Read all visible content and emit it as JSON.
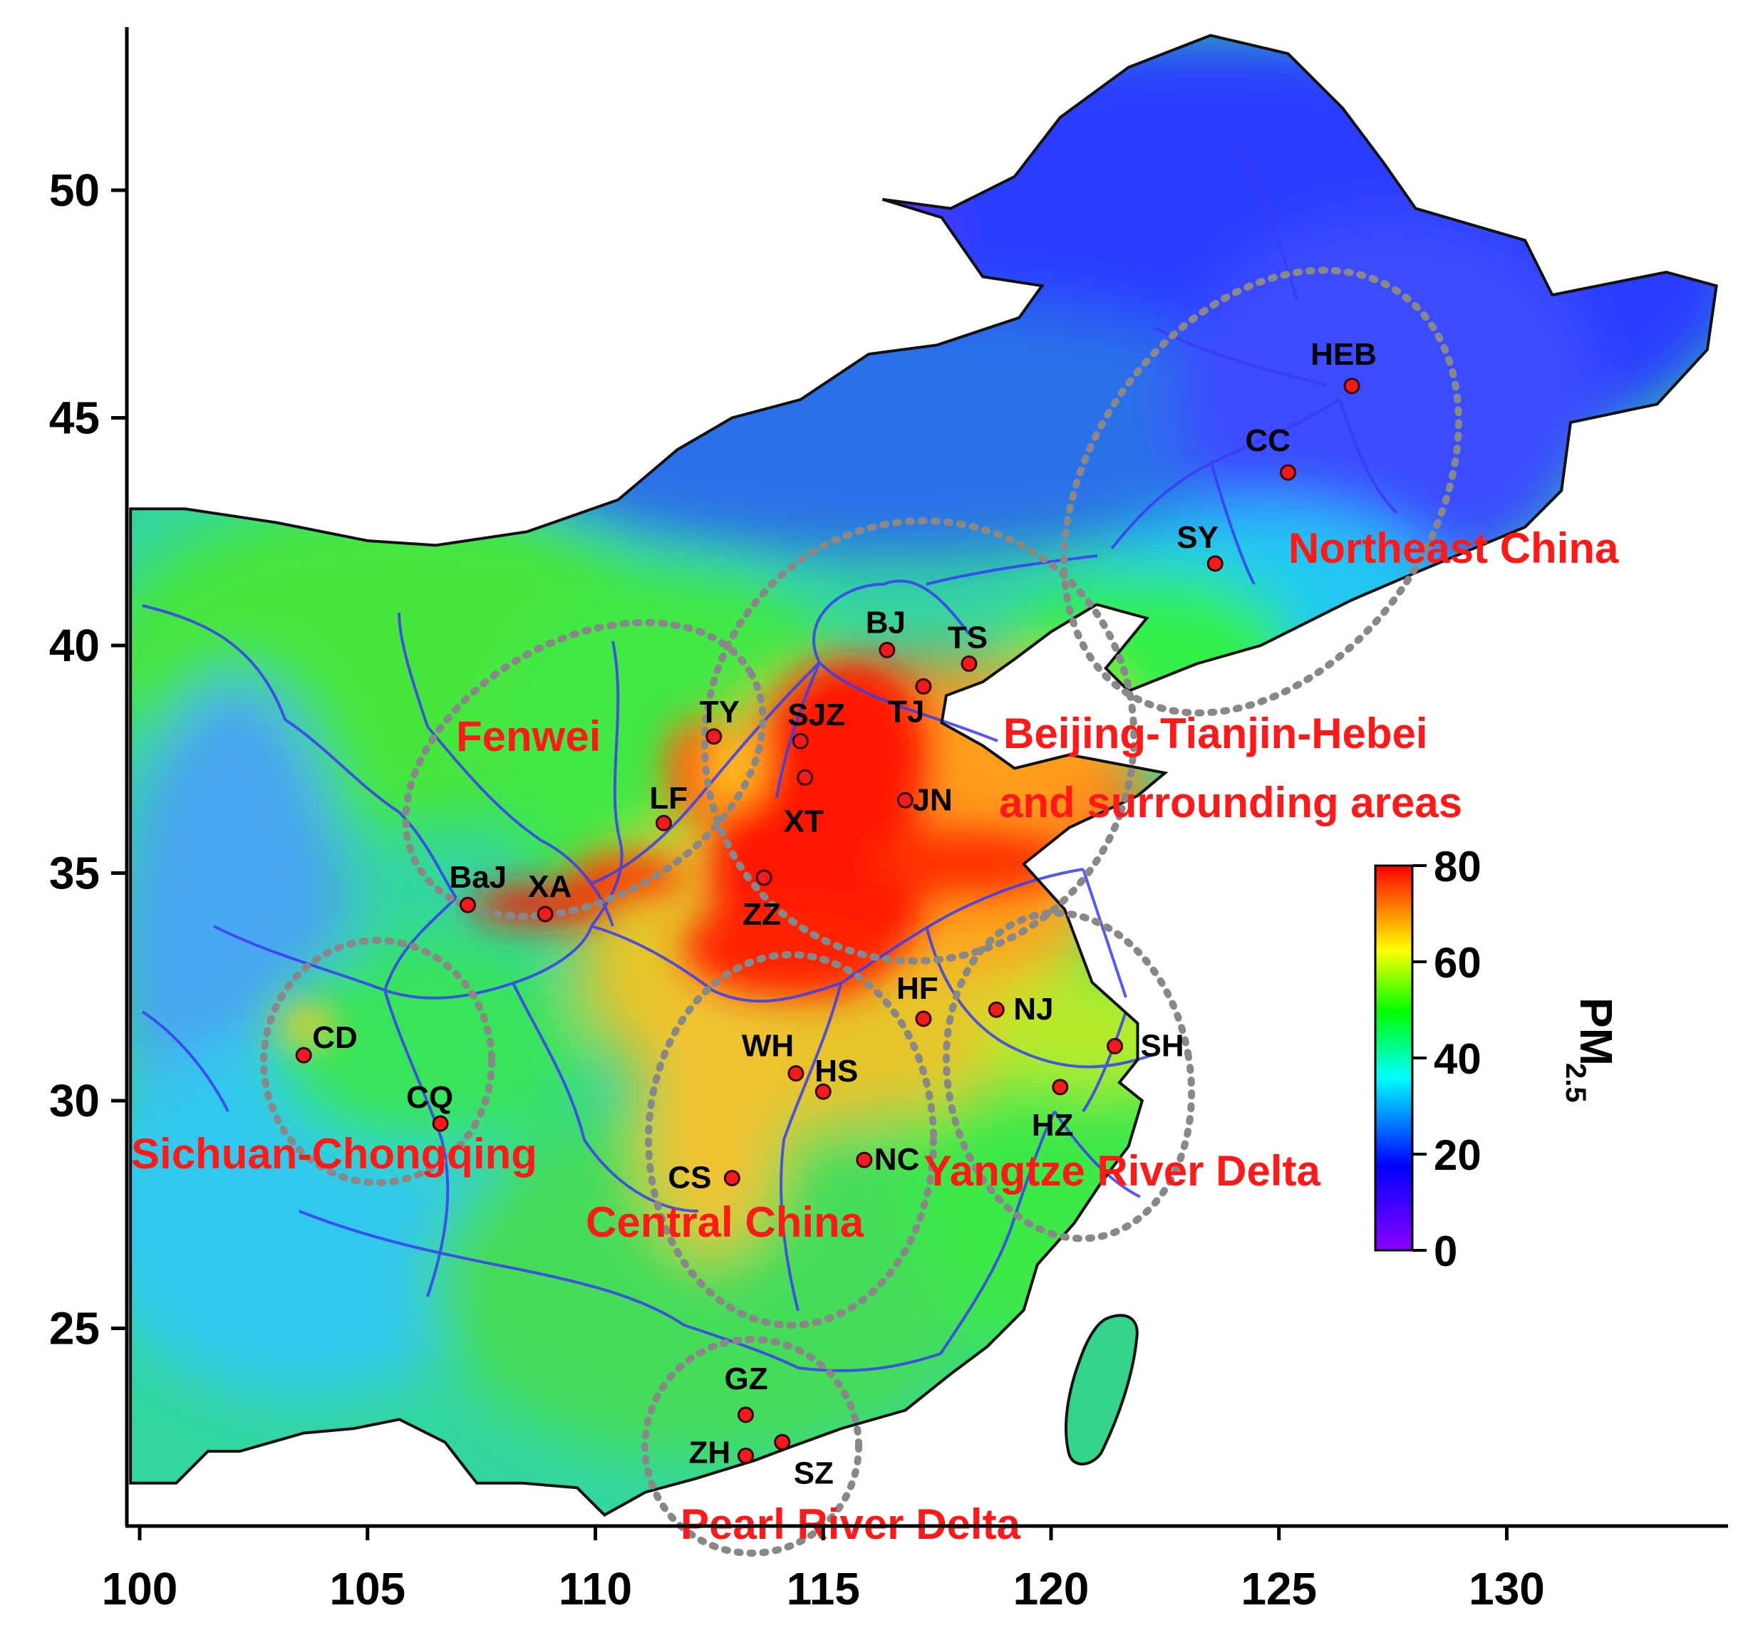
{
  "map": {
    "lon_ticks": [
      "100",
      "105",
      "110",
      "115",
      "120",
      "125",
      "130"
    ],
    "lat_ticks": [
      "25",
      "30",
      "35",
      "40",
      "45",
      "50"
    ],
    "lon_values": [
      100,
      105,
      110,
      115,
      120,
      125,
      130
    ],
    "lat_values": [
      25,
      30,
      35,
      40,
      45,
      50
    ],
    "lon_range": [
      99.8,
      134.8
    ],
    "lat_range": [
      20.5,
      53.8
    ],
    "cities": [
      {
        "code": "HEB",
        "lon": 126.6,
        "lat": 45.7
      },
      {
        "code": "CC",
        "lon": 125.2,
        "lat": 43.8
      },
      {
        "code": "SY",
        "lon": 123.6,
        "lat": 41.8
      },
      {
        "code": "BJ",
        "lon": 116.4,
        "lat": 39.9
      },
      {
        "code": "TS",
        "lon": 118.2,
        "lat": 39.6
      },
      {
        "code": "TJ",
        "lon": 117.2,
        "lat": 39.1
      },
      {
        "code": "SJZ",
        "lon": 114.5,
        "lat": 37.9
      },
      {
        "code": "XT",
        "lon": 114.6,
        "lat": 37.1
      },
      {
        "code": "TY",
        "lon": 112.6,
        "lat": 38.0
      },
      {
        "code": "JN",
        "lon": 116.8,
        "lat": 36.6
      },
      {
        "code": "LF",
        "lon": 111.5,
        "lat": 36.1
      },
      {
        "code": "BaJ",
        "lon": 107.2,
        "lat": 34.3
      },
      {
        "code": "XA",
        "lon": 108.9,
        "lat": 34.1
      },
      {
        "code": "ZZ",
        "lon": 113.7,
        "lat": 34.9
      },
      {
        "code": "HF",
        "lon": 117.2,
        "lat": 31.8
      },
      {
        "code": "NJ",
        "lon": 118.8,
        "lat": 32.0
      },
      {
        "code": "SH",
        "lon": 121.4,
        "lat": 31.2
      },
      {
        "code": "WH",
        "lon": 114.4,
        "lat": 30.6
      },
      {
        "code": "HS",
        "lon": 115.0,
        "lat": 30.2
      },
      {
        "code": "HZ",
        "lon": 120.2,
        "lat": 30.3
      },
      {
        "code": "CD",
        "lon": 103.6,
        "lat": 31.0
      },
      {
        "code": "CQ",
        "lon": 106.6,
        "lat": 29.5
      },
      {
        "code": "CS",
        "lon": 113.0,
        "lat": 28.3
      },
      {
        "code": "NC",
        "lon": 115.9,
        "lat": 28.7
      },
      {
        "code": "GZ",
        "lon": 113.3,
        "lat": 23.1
      },
      {
        "code": "ZH",
        "lon": 113.3,
        "lat": 22.2
      },
      {
        "code": "SZ",
        "lon": 114.1,
        "lat": 22.5
      }
    ],
    "regions": [
      {
        "name": "Northeast China"
      },
      {
        "name": "Beijing-Tianjin-Hebei"
      },
      {
        "name": "and surrounding areas"
      },
      {
        "name": "Fenwei"
      },
      {
        "name": "Sichuan-Chongqing"
      },
      {
        "name": "Central China"
      },
      {
        "name": "Yangtze River Delta"
      },
      {
        "name": "Pearl River Delta"
      }
    ]
  },
  "colorbar": {
    "title": "PM",
    "subscript": "2.5",
    "ticks": [
      "0",
      "20",
      "40",
      "60",
      "80"
    ],
    "tick_values": [
      0,
      20,
      40,
      60,
      80
    ],
    "range": [
      0,
      80
    ],
    "colors": [
      "#8a00ff",
      "#0000ff",
      "#00ffff",
      "#00ff00",
      "#ffff00",
      "#ff0000"
    ]
  }
}
